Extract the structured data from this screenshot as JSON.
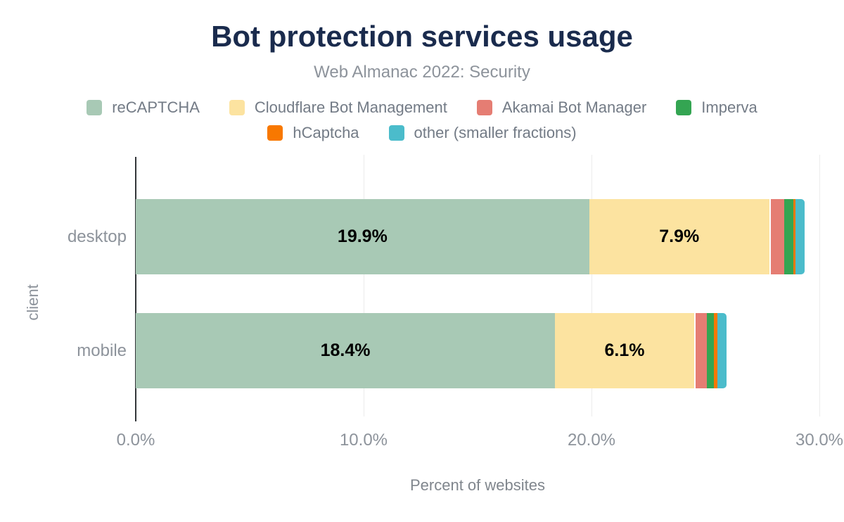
{
  "chart_data": {
    "type": "bar",
    "variant": "horizontal-stacked",
    "title": "Bot protection services usage",
    "subtitle": "Web Almanac 2022: Security",
    "xlabel": "Percent of websites",
    "ylabel": "client",
    "xlim": [
      0,
      30
    ],
    "grid": true,
    "legend_position": "top",
    "x_ticks": [
      {
        "label": "0.0%",
        "value": 0
      },
      {
        "label": "10.0%",
        "value": 10
      },
      {
        "label": "20.0%",
        "value": 20
      },
      {
        "label": "30.0%",
        "value": 30
      }
    ],
    "categories": [
      "desktop",
      "mobile"
    ],
    "series": [
      {
        "name": "reCAPTCHA",
        "color": "#a8c9b5",
        "legend_row": 1,
        "values": [
          19.9,
          18.4
        ],
        "labels": [
          "19.9%",
          "18.4%"
        ]
      },
      {
        "name": "Cloudflare Bot Management",
        "color": "#fce3a0",
        "legend_row": 1,
        "values": [
          7.9,
          6.1
        ],
        "labels": [
          "7.9%",
          "6.1%"
        ]
      },
      {
        "name": "Akamai Bot Manager",
        "color": "#e57d73",
        "legend_row": 1,
        "values": [
          0.6,
          0.5
        ],
        "labels": [
          "",
          ""
        ]
      },
      {
        "name": "Imperva",
        "color": "#34a552",
        "legend_row": 1,
        "values": [
          0.4,
          0.3
        ],
        "labels": [
          "",
          ""
        ]
      },
      {
        "name": "hCaptcha",
        "color": "#f87800",
        "legend_row": 2,
        "values": [
          0.1,
          0.15
        ],
        "labels": [
          "",
          ""
        ]
      },
      {
        "name": "other (smaller fractions)",
        "color": "#4bbccb",
        "legend_row": 2,
        "values": [
          0.4,
          0.4
        ],
        "labels": [
          "",
          ""
        ]
      }
    ],
    "colors": {
      "title": "#1a2b4d",
      "subtitle": "#8d939b",
      "axis_text": "#8d939b",
      "legend_text": "#737b86",
      "gridline": "#ececec",
      "axis_line": "#33363a",
      "value_label": "#000000"
    }
  }
}
